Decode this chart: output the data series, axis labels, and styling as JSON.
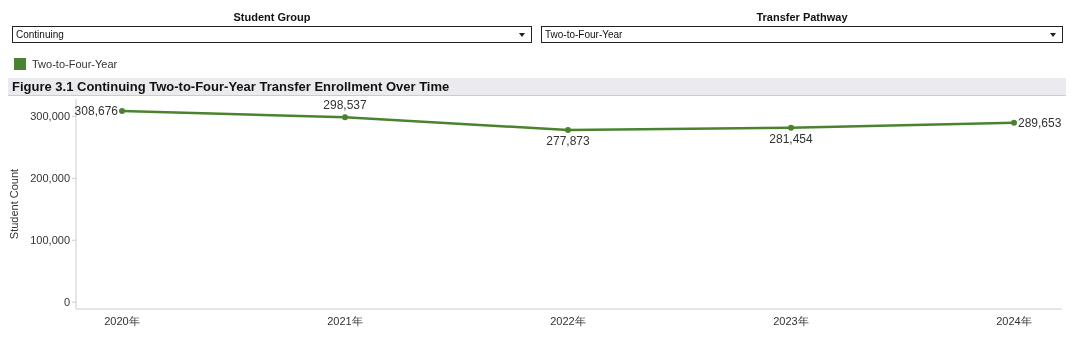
{
  "chart_data": {
    "type": "line",
    "title": "Figure 3.1 Continuing Two-to-Four-Year Transfer Enrollment Over Time",
    "annotations": [
      "Student Group",
      "Continuing",
      "Transfer Pathway",
      "Two-to-Four-Year"
    ],
    "categories": [
      "2020年",
      "2021年",
      "2022年",
      "2023年",
      "2024年"
    ],
    "series": [
      {
        "name": "Two-to-Four-Year",
        "color": "#4a832f",
        "values": [
          308676,
          298537,
          277873,
          281454,
          289653
        ],
        "value_labels": [
          "308,676",
          "298,537",
          "277,873",
          "281,454",
          "289,653"
        ]
      }
    ],
    "ylabel": "Student Count",
    "ylim": [
      -11000,
      328000
    ],
    "yticks": [
      0,
      {
        "value": 100000,
        "label": "100,000"
      },
      {
        "value": 200000,
        "label": "200,000"
      },
      {
        "value": 300000,
        "label": "300,000"
      }
    ],
    "grid": false,
    "legend": "top left",
    "marker": "circle",
    "line_style": "solid"
  }
}
